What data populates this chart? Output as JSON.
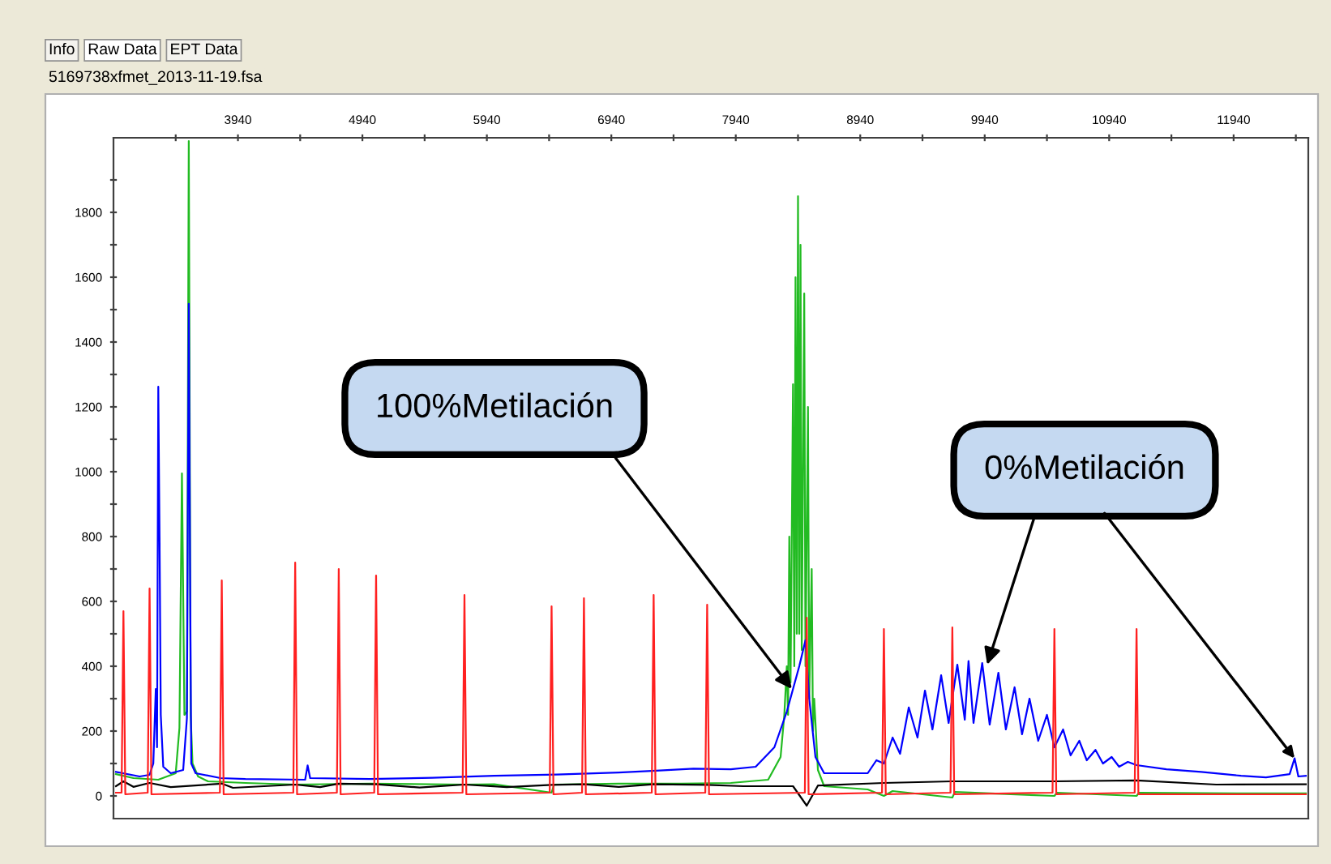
{
  "chart_data": {
    "type": "line",
    "title": "5169738xfmet_2013-11-19.fsa",
    "annotations": [
      "Info",
      "Raw Data",
      "EPT Data",
      {
        "text": "100%Metilación",
        "x": 8390,
        "y": 330
      },
      {
        "text": "0%Metilación",
        "x": 9960,
        "y": 405
      }
    ],
    "xlim": [
      2940,
      12540
    ],
    "ylim": [
      -70,
      2030
    ],
    "xticks": [
      {
        "value": 3440,
        "label": null
      },
      3940,
      {
        "value": 4440,
        "label": null
      },
      4940,
      {
        "value": 5440,
        "label": null
      },
      5940,
      {
        "value": 6440,
        "label": null
      },
      6940,
      {
        "value": 7440,
        "label": null
      },
      7940,
      {
        "value": 8440,
        "label": null
      },
      8940,
      {
        "value": 9440,
        "label": null
      },
      9940,
      {
        "value": 10440,
        "label": null
      },
      10940,
      {
        "value": 11440,
        "label": null
      },
      11940,
      {
        "value": 12440,
        "label": null
      }
    ],
    "yticks": [
      0,
      {
        "value": 100,
        "label": null
      },
      200,
      {
        "value": 300,
        "label": null
      },
      400,
      {
        "value": 500,
        "label": null
      },
      600,
      {
        "value": 700,
        "label": null
      },
      800,
      {
        "value": 900,
        "label": null
      },
      1000,
      {
        "value": 1100,
        "label": null
      },
      1200,
      {
        "value": 1300,
        "label": null
      },
      1400,
      {
        "value": 1500,
        "label": null
      },
      1600,
      {
        "value": 1700,
        "label": null
      },
      1800,
      {
        "value": 1900,
        "label": null
      }
    ],
    "grid": false,
    "line_style": "solid",
    "marker": "none",
    "series": [
      {
        "color": "#22bb22",
        "x": [
          2960,
          3100,
          3300,
          3440,
          3470,
          3490,
          3510,
          3530,
          3545,
          3560,
          3575,
          3620,
          3700,
          4000,
          4400,
          5000,
          5760,
          6000,
          6460,
          6480,
          7000,
          7500,
          7900,
          8200,
          8300,
          8330,
          8350,
          8360,
          8370,
          8380,
          8400,
          8410,
          8420,
          8430,
          8440,
          8450,
          8460,
          8470,
          8490,
          8500,
          8520,
          8530,
          8550,
          8560,
          8570,
          8600,
          8650,
          9000,
          9130,
          9200,
          9680,
          9700,
          10500,
          10520,
          11160,
          11180,
          12000,
          12520
        ],
        "values": [
          67,
          55,
          50,
          70,
          210,
          995,
          250,
          260,
          2020,
          250,
          100,
          60,
          45,
          40,
          35,
          38,
          35,
          36,
          10,
          35,
          38,
          38,
          40,
          50,
          120,
          250,
          400,
          250,
          800,
          350,
          1270,
          400,
          1600,
          500,
          1850,
          500,
          1700,
          450,
          1550,
          400,
          1200,
          300,
          700,
          200,
          300,
          80,
          30,
          20,
          0,
          15,
          -5,
          12,
          0,
          10,
          0,
          10,
          8,
          8
        ]
      },
      {
        "color": "#0000ff",
        "x": [
          2960,
          3150,
          3230,
          3260,
          3280,
          3290,
          3300,
          3310,
          3320,
          3340,
          3400,
          3500,
          3530,
          3545,
          3555,
          3565,
          3600,
          3800,
          4000,
          4480,
          4500,
          4520,
          5000,
          5500,
          6000,
          6500,
          7000,
          7300,
          7600,
          7900,
          8100,
          8250,
          8350,
          8450,
          8500,
          8530,
          8580,
          8650,
          9000,
          9070,
          9130,
          9200,
          9260,
          9330,
          9400,
          9460,
          9520,
          9590,
          9650,
          9720,
          9780,
          9810,
          9850,
          9920,
          9980,
          10050,
          10110,
          10180,
          10240,
          10300,
          10370,
          10440,
          10500,
          10570,
          10630,
          10700,
          10760,
          10830,
          10890,
          10960,
          11020,
          11090,
          11160,
          11400,
          11680,
          12000,
          12200,
          12390,
          12430,
          12460,
          12520
        ],
        "values": [
          74,
          60,
          65,
          100,
          330,
          150,
          1262,
          800,
          250,
          90,
          70,
          80,
          240,
          1518,
          720,
          100,
          70,
          55,
          52,
          50,
          94,
          55,
          52,
          56,
          62,
          66,
          72,
          78,
          84,
          82,
          90,
          150,
          260,
          400,
          480,
          300,
          120,
          70,
          70,
          110,
          100,
          180,
          130,
          273,
          180,
          325,
          205,
          372,
          225,
          405,
          235,
          416,
          225,
          410,
          220,
          380,
          205,
          335,
          190,
          300,
          170,
          250,
          150,
          205,
          125,
          170,
          110,
          142,
          100,
          120,
          90,
          105,
          95,
          82,
          74,
          62,
          57,
          67,
          116,
          60,
          62
        ]
      },
      {
        "color": "#000000",
        "x": [
          2960,
          3020,
          3100,
          3230,
          3400,
          3810,
          3900,
          4400,
          4600,
          4750,
          5050,
          5400,
          5760,
          6100,
          6460,
          6720,
          7000,
          7280,
          7710,
          8000,
          8400,
          8510,
          8600,
          9130,
          9680,
          10500,
          11160,
          11800,
          12520
        ],
        "values": [
          30,
          45,
          28,
          40,
          27,
          38,
          25,
          35,
          27,
          38,
          36,
          26,
          35,
          27,
          34,
          36,
          28,
          36,
          34,
          30,
          30,
          -30,
          32,
          40,
          45,
          45,
          48,
          35,
          36
        ]
      },
      {
        "color": "#ff2020",
        "x": [
          2960,
          3005,
          3020,
          3035,
          3215,
          3230,
          3245,
          3795,
          3810,
          3825,
          4385,
          4400,
          4415,
          4735,
          4750,
          4765,
          5035,
          5050,
          5065,
          5745,
          5760,
          5775,
          6445,
          6460,
          6475,
          6705,
          6720,
          6735,
          7265,
          7280,
          7295,
          7695,
          7710,
          7725,
          8495,
          8510,
          8525,
          9115,
          9130,
          9145,
          9665,
          9680,
          9695,
          10485,
          10500,
          10515,
          11145,
          11160,
          11175,
          12520
        ],
        "values": [
          10,
          10,
          570,
          5,
          10,
          640,
          5,
          10,
          665,
          5,
          10,
          720,
          5,
          10,
          700,
          5,
          10,
          680,
          5,
          10,
          620,
          5,
          10,
          585,
          5,
          10,
          610,
          5,
          10,
          620,
          5,
          10,
          590,
          5,
          10,
          550,
          5,
          10,
          515,
          5,
          10,
          520,
          5,
          10,
          515,
          5,
          10,
          515,
          5,
          5
        ]
      }
    ]
  }
}
